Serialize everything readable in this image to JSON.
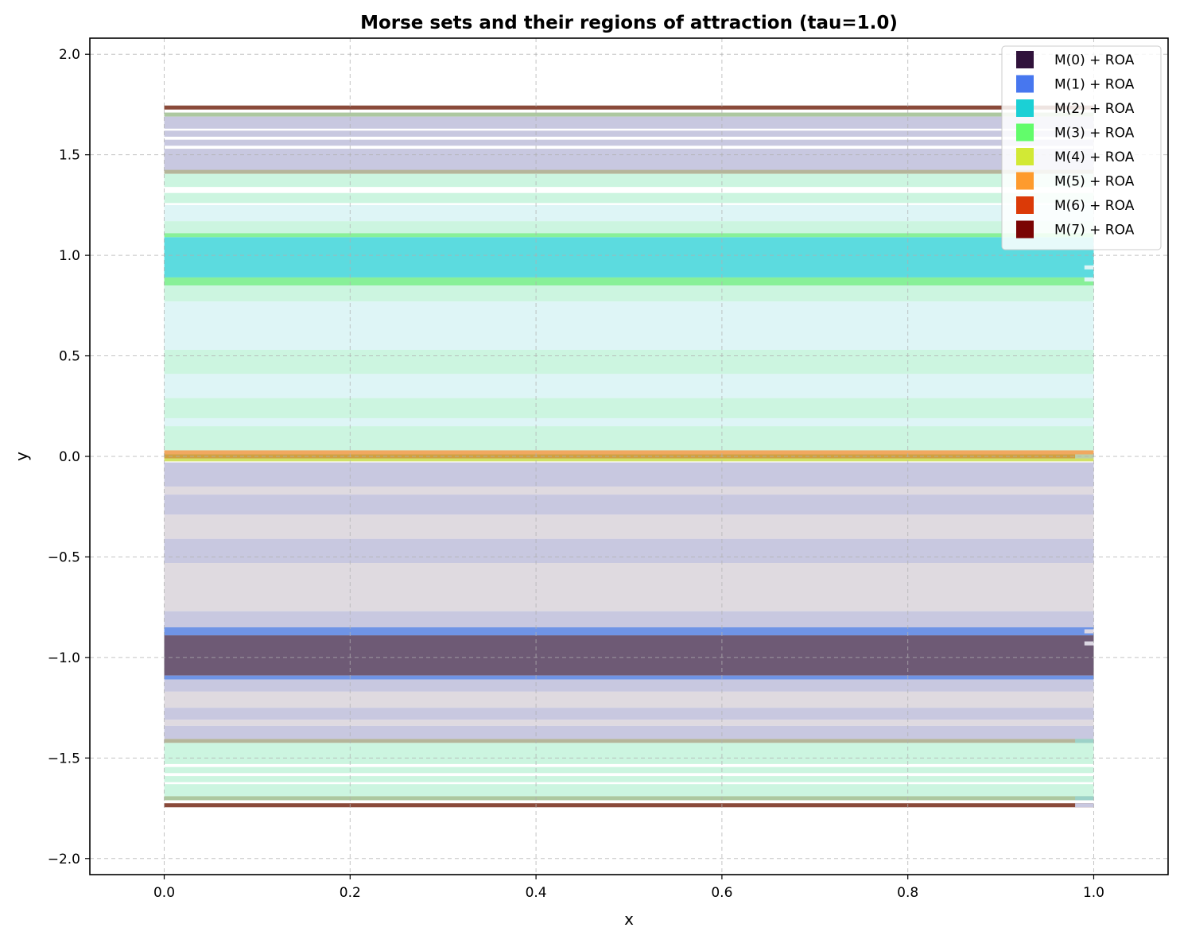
{
  "chart_data": {
    "type": "heatmap",
    "title": "Morse sets and their regions of attraction (tau=1.0)",
    "xlabel": "x",
    "ylabel": "y",
    "xlim": [
      -0.08,
      1.08
    ],
    "ylim": [
      -2.08,
      2.08
    ],
    "grid": true,
    "legend_position": "top-right",
    "x_ticks": [
      0.0,
      0.2,
      0.4,
      0.6,
      0.8,
      1.0
    ],
    "x_tick_labels": [
      "0.0",
      "0.2",
      "0.4",
      "0.6",
      "0.8",
      "1.0"
    ],
    "y_ticks": [
      2.0,
      1.5,
      1.0,
      0.5,
      0.0,
      -0.5,
      -1.0,
      -1.5,
      -2.0
    ],
    "y_tick_labels": [
      "2.0",
      "1.5",
      "1.0",
      "0.5",
      "0.0",
      "−0.5",
      "−1.0",
      "−1.5",
      "−2.0"
    ],
    "legend": [
      {
        "label": "M(0) + ROA",
        "color": "#30123b"
      },
      {
        "label": "M(1) + ROA",
        "color": "#4777ef"
      },
      {
        "label": "M(2) + ROA",
        "color": "#1bd0d5"
      },
      {
        "label": "M(3) + ROA",
        "color": "#62fc6b"
      },
      {
        "label": "M(4) + ROA",
        "color": "#d2e935"
      },
      {
        "label": "M(5) + ROA",
        "color": "#fe9b2d"
      },
      {
        "label": "M(6) + ROA",
        "color": "#db3a07"
      },
      {
        "label": "M(7) + ROA",
        "color": "#7a0403"
      }
    ],
    "bands": [
      {
        "x0": 0.0,
        "x1": 1.0,
        "y0": 1.725,
        "y1": 1.745,
        "color": "#8a4a3a"
      },
      {
        "x0": 0.0,
        "x1": 1.0,
        "y0": 1.69,
        "y1": 1.71,
        "color": "#adc8a0"
      },
      {
        "x0": 0.0,
        "x1": 1.0,
        "y0": 1.63,
        "y1": 1.69,
        "color": "#c8c8e0"
      },
      {
        "x0": 0.0,
        "x1": 1.0,
        "y0": 1.59,
        "y1": 1.62,
        "color": "#c8c8e0"
      },
      {
        "x0": 0.0,
        "x1": 1.0,
        "y0": 1.545,
        "y1": 1.575,
        "color": "#c8c8e0"
      },
      {
        "x0": 0.0,
        "x1": 1.0,
        "y0": 1.42,
        "y1": 1.53,
        "color": "#c8c8e0"
      },
      {
        "x0": 0.0,
        "x1": 1.0,
        "y0": 1.405,
        "y1": 1.425,
        "color": "#b5b59a"
      },
      {
        "x0": 0.0,
        "x1": 1.0,
        "y0": 1.34,
        "y1": 1.405,
        "color": "#ccf5e0"
      },
      {
        "x0": 0.0,
        "x1": 1.0,
        "y0": 1.26,
        "y1": 1.31,
        "color": "#ccf5e0"
      },
      {
        "x0": 0.0,
        "x1": 1.0,
        "y0": 1.17,
        "y1": 1.25,
        "color": "#def5f6"
      },
      {
        "x0": 0.0,
        "x1": 1.0,
        "y0": 1.11,
        "y1": 1.17,
        "color": "#ccf5e0"
      },
      {
        "x0": 0.0,
        "x1": 1.0,
        "y0": 1.09,
        "y1": 1.11,
        "color": "#88f098"
      },
      {
        "x0": 0.0,
        "x1": 1.0,
        "y0": 0.89,
        "y1": 1.09,
        "color": "#5cdbdf"
      },
      {
        "x0": 0.0,
        "x1": 1.0,
        "y0": 0.85,
        "y1": 0.89,
        "color": "#88f098"
      },
      {
        "x0": 0.0,
        "x1": 1.0,
        "y0": 0.77,
        "y1": 0.85,
        "color": "#ccf5e0"
      },
      {
        "x0": 0.0,
        "x1": 1.0,
        "y0": 0.53,
        "y1": 0.77,
        "color": "#def5f6"
      },
      {
        "x0": 0.0,
        "x1": 1.0,
        "y0": 0.41,
        "y1": 0.53,
        "color": "#ccf5e0"
      },
      {
        "x0": 0.0,
        "x1": 1.0,
        "y0": 0.29,
        "y1": 0.41,
        "color": "#def5f6"
      },
      {
        "x0": 0.0,
        "x1": 1.0,
        "y0": 0.19,
        "y1": 0.29,
        "color": "#ccf5e0"
      },
      {
        "x0": 0.0,
        "x1": 1.0,
        "y0": 0.15,
        "y1": 0.19,
        "color": "#def5f6"
      },
      {
        "x0": 0.0,
        "x1": 1.0,
        "y0": 0.03,
        "y1": 0.15,
        "color": "#ccf5e0"
      },
      {
        "x0": 0.0,
        "x1": 1.0,
        "y0": 0.01,
        "y1": 0.03,
        "color": "#f0a860"
      },
      {
        "x0": 0.0,
        "x1": 1.0,
        "y0": -0.01,
        "y1": 0.01,
        "color": "#d0a040"
      },
      {
        "x0": 0.0,
        "x1": 1.0,
        "y0": -0.025,
        "y1": -0.01,
        "color": "#d2e067"
      },
      {
        "x0": 0.0,
        "x1": 1.0,
        "y0": -0.15,
        "y1": -0.03,
        "color": "#c8c8e0"
      },
      {
        "x0": 0.0,
        "x1": 1.0,
        "y0": -0.19,
        "y1": -0.15,
        "color": "#dfdae0"
      },
      {
        "x0": 0.0,
        "x1": 1.0,
        "y0": -0.29,
        "y1": -0.19,
        "color": "#c8c8e0"
      },
      {
        "x0": 0.0,
        "x1": 1.0,
        "y0": -0.41,
        "y1": -0.29,
        "color": "#dfdae0"
      },
      {
        "x0": 0.0,
        "x1": 1.0,
        "y0": -0.53,
        "y1": -0.41,
        "color": "#c8c8e0"
      },
      {
        "x0": 0.0,
        "x1": 1.0,
        "y0": -0.77,
        "y1": -0.53,
        "color": "#dfdae0"
      },
      {
        "x0": 0.0,
        "x1": 1.0,
        "y0": -0.85,
        "y1": -0.77,
        "color": "#c8c8e0"
      },
      {
        "x0": 0.0,
        "x1": 1.0,
        "y0": -0.89,
        "y1": -0.85,
        "color": "#6f94e6"
      },
      {
        "x0": 0.0,
        "x1": 1.0,
        "y0": -1.09,
        "y1": -0.89,
        "color": "#6e5a75"
      },
      {
        "x0": 0.0,
        "x1": 1.0,
        "y0": -1.11,
        "y1": -1.09,
        "color": "#6f94e6"
      },
      {
        "x0": 0.0,
        "x1": 1.0,
        "y0": -1.17,
        "y1": -1.11,
        "color": "#c8c8e0"
      },
      {
        "x0": 0.0,
        "x1": 1.0,
        "y0": -1.25,
        "y1": -1.17,
        "color": "#dfdae0"
      },
      {
        "x0": 0.0,
        "x1": 1.0,
        "y0": -1.31,
        "y1": -1.25,
        "color": "#c8c8e0"
      },
      {
        "x0": 0.0,
        "x1": 1.0,
        "y0": -1.34,
        "y1": -1.31,
        "color": "#dfdae0"
      },
      {
        "x0": 0.0,
        "x1": 1.0,
        "y0": -1.405,
        "y1": -1.34,
        "color": "#c8c8e0"
      },
      {
        "x0": 0.0,
        "x1": 1.0,
        "y0": -1.425,
        "y1": -1.405,
        "color": "#b5b59a"
      },
      {
        "x0": 0.0,
        "x1": 1.0,
        "y0": -1.53,
        "y1": -1.425,
        "color": "#ccf5e0"
      },
      {
        "x0": 0.0,
        "x1": 1.0,
        "y0": -1.575,
        "y1": -1.545,
        "color": "#ccf5e0"
      },
      {
        "x0": 0.0,
        "x1": 1.0,
        "y0": -1.62,
        "y1": -1.59,
        "color": "#ccf5e0"
      },
      {
        "x0": 0.0,
        "x1": 1.0,
        "y0": -1.69,
        "y1": -1.63,
        "color": "#ccf5e0"
      },
      {
        "x0": 0.0,
        "x1": 1.0,
        "y0": -1.71,
        "y1": -1.69,
        "color": "#adc8a0"
      },
      {
        "x0": 0.0,
        "x1": 1.0,
        "y0": -1.745,
        "y1": -1.725,
        "color": "#8a4a3a"
      },
      {
        "x0": 0.98,
        "x1": 1.0,
        "y0": -1.745,
        "y1": -1.725,
        "color": "#c8c8e0"
      },
      {
        "x0": 0.98,
        "x1": 1.0,
        "y0": -1.71,
        "y1": -1.69,
        "color": "#9cd2c8"
      },
      {
        "x0": 0.98,
        "x1": 1.0,
        "y0": -1.425,
        "y1": -1.405,
        "color": "#9cd2c8"
      },
      {
        "x0": 0.98,
        "x1": 1.0,
        "y0": -0.01,
        "y1": 0.01,
        "color": "#bcd0a8"
      },
      {
        "x0": 0.99,
        "x1": 1.0,
        "y0": -0.94,
        "y1": -0.92,
        "color": "#ddd8e4"
      },
      {
        "x0": 0.99,
        "x1": 1.0,
        "y0": -0.88,
        "y1": -0.86,
        "color": "#ddd8e4"
      },
      {
        "x0": 0.99,
        "x1": 1.0,
        "y0": 0.87,
        "y1": 0.89,
        "color": "#ddf5f5"
      },
      {
        "x0": 0.99,
        "x1": 1.0,
        "y0": 0.93,
        "y1": 0.95,
        "color": "#ddf5f5"
      }
    ]
  }
}
